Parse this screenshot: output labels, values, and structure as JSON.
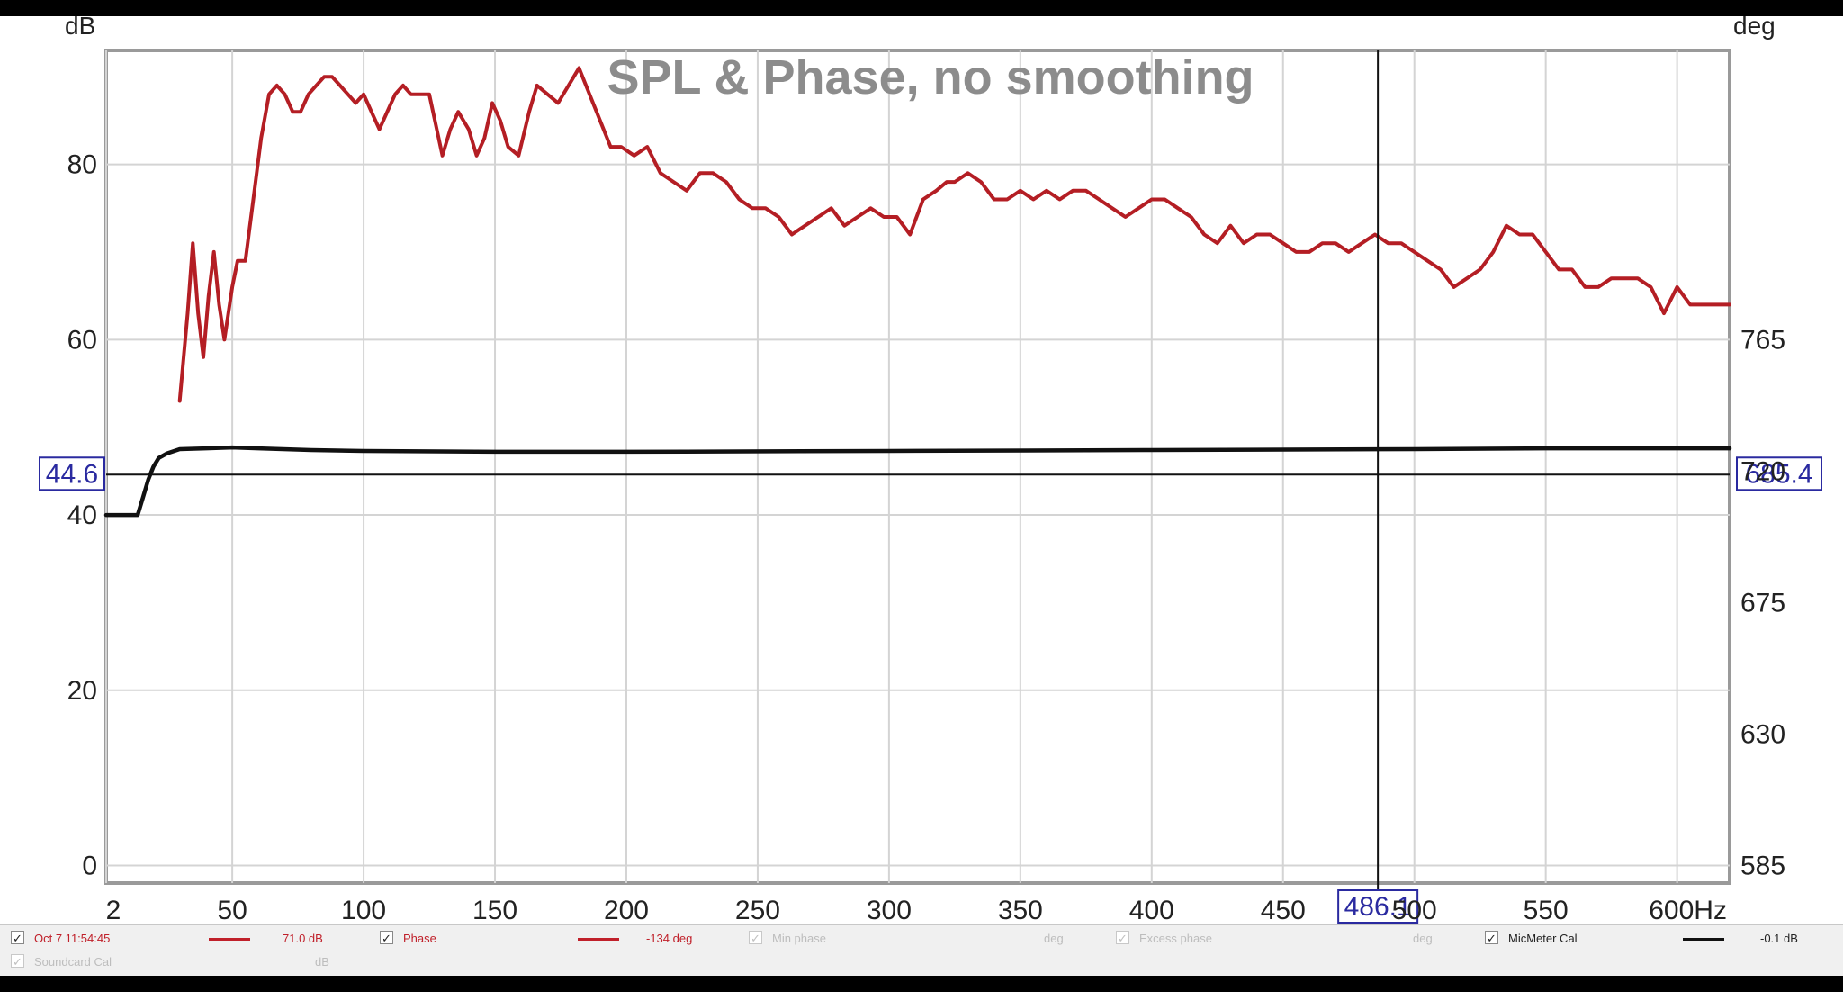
{
  "chart_data": {
    "type": "line",
    "title": "SPL & Phase, no smoothing",
    "ylabel_left": "dB",
    "ylabel_right": "deg",
    "x_unit": "Hz",
    "xlim": [
      2,
      620
    ],
    "ylim_left": [
      -2,
      93
    ],
    "ylim_right": [
      579,
      864
    ],
    "x_tick_labels": [
      "2",
      "50",
      "100",
      "150",
      "200",
      "250",
      "300",
      "350",
      "400",
      "450",
      "500",
      "550",
      "600Hz"
    ],
    "x_tick_values": [
      2,
      50,
      100,
      150,
      200,
      250,
      300,
      350,
      400,
      450,
      500,
      550,
      600
    ],
    "y_left_tick_values": [
      0,
      20,
      40,
      60,
      80
    ],
    "y_left_tick_labels": [
      "0",
      "20",
      "40",
      "60",
      "80"
    ],
    "y_right_tick_values": [
      585,
      630,
      675,
      720,
      765
    ],
    "y_right_tick_labels": [
      "585",
      "630",
      "675",
      "720",
      "765"
    ],
    "grid": true,
    "cursor": {
      "x_readout": "486.1",
      "x_value": 486.1,
      "left_readout": "44.6",
      "left_value": 44.6,
      "right_readout": "685.4",
      "right_value": 685.4
    },
    "series": [
      {
        "name": "Oct 7 11:54:45",
        "color": "#b41e24",
        "axis": "left",
        "x": [
          30,
          33,
          35,
          37,
          39,
          41,
          43,
          45,
          47,
          48,
          50,
          52,
          55,
          58,
          61,
          64,
          67,
          70,
          73,
          76,
          79,
          82,
          85,
          88,
          91,
          94,
          97,
          100,
          103,
          106,
          109,
          112,
          115,
          118,
          121,
          125,
          130,
          133,
          136,
          140,
          143,
          146,
          149,
          152,
          155,
          159,
          163,
          166,
          170,
          174,
          178,
          182,
          186,
          190,
          194,
          198,
          203,
          208,
          213,
          218,
          223,
          228,
          233,
          238,
          243,
          248,
          253,
          258,
          263,
          268,
          273,
          278,
          283,
          288,
          293,
          298,
          303,
          308,
          313,
          318,
          322,
          325,
          330,
          335,
          340,
          345,
          350,
          355,
          360,
          365,
          370,
          375,
          380,
          385,
          390,
          395,
          400,
          405,
          410,
          415,
          420,
          425,
          430,
          435,
          440,
          445,
          450,
          455,
          460,
          465,
          470,
          475,
          480,
          485,
          490,
          495,
          500,
          505,
          510,
          515,
          520,
          525,
          530,
          535,
          540,
          545,
          550,
          555,
          560,
          565,
          570,
          575,
          580,
          585,
          590,
          595,
          600,
          605,
          610,
          615,
          620
        ],
        "y": [
          53,
          63,
          71,
          63,
          58,
          65,
          70,
          64,
          60,
          62,
          66,
          69,
          69,
          76,
          83,
          88,
          89,
          88,
          86,
          86,
          88,
          89,
          90,
          90,
          89,
          88,
          87,
          88,
          86,
          84,
          86,
          88,
          89,
          88,
          88,
          88,
          81,
          84,
          86,
          84,
          81,
          83,
          87,
          85,
          82,
          81,
          86,
          89,
          88,
          87,
          89,
          91,
          88,
          85,
          82,
          82,
          81,
          82,
          79,
          78,
          77,
          79,
          79,
          78,
          76,
          75,
          75,
          74,
          72,
          73,
          74,
          75,
          73,
          74,
          75,
          74,
          74,
          72,
          76,
          77,
          78,
          78,
          79,
          78,
          76,
          76,
          77,
          76,
          77,
          76,
          77,
          77,
          76,
          75,
          74,
          75,
          76,
          76,
          75,
          74,
          72,
          71,
          73,
          71,
          72,
          72,
          71,
          70,
          70,
          71,
          71,
          70,
          71,
          72,
          71,
          71,
          70,
          69,
          68,
          66,
          67,
          68,
          70,
          73,
          72,
          72,
          70,
          68,
          68,
          66,
          66,
          67,
          67,
          67,
          66,
          63,
          66,
          64,
          64,
          64,
          64
        ]
      },
      {
        "name": "MicMeter Cal",
        "color": "#111111",
        "axis": "left",
        "x": [
          2,
          4,
          6,
          8,
          10,
          12,
          14,
          16,
          18,
          20,
          22,
          25,
          30,
          40,
          50,
          60,
          80,
          100,
          150,
          200,
          300,
          400,
          500,
          550,
          600,
          620
        ],
        "y": [
          40,
          40,
          40,
          40,
          40,
          40,
          40,
          42,
          44,
          45.5,
          46.5,
          47,
          47.5,
          47.6,
          47.7,
          47.6,
          47.4,
          47.3,
          47.2,
          47.2,
          47.3,
          47.4,
          47.5,
          47.6,
          47.6,
          47.6
        ]
      }
    ]
  },
  "legend": {
    "item1_label": "Oct 7 11:54:45",
    "item1_value": "71.0 dB",
    "item2_label": "Phase",
    "item2_value": "-134 deg",
    "item3_label": "Min phase",
    "item3_unit": "deg",
    "item4_label": "Excess phase",
    "item4_unit": "deg",
    "item5_label": "MicMeter Cal",
    "item5_value": "-0.1 dB",
    "item6_label": "Soundcard Cal",
    "item6_unit": "dB",
    "check_mark": "✓",
    "colors": {
      "red": "#c0202a",
      "black": "#111111"
    }
  }
}
